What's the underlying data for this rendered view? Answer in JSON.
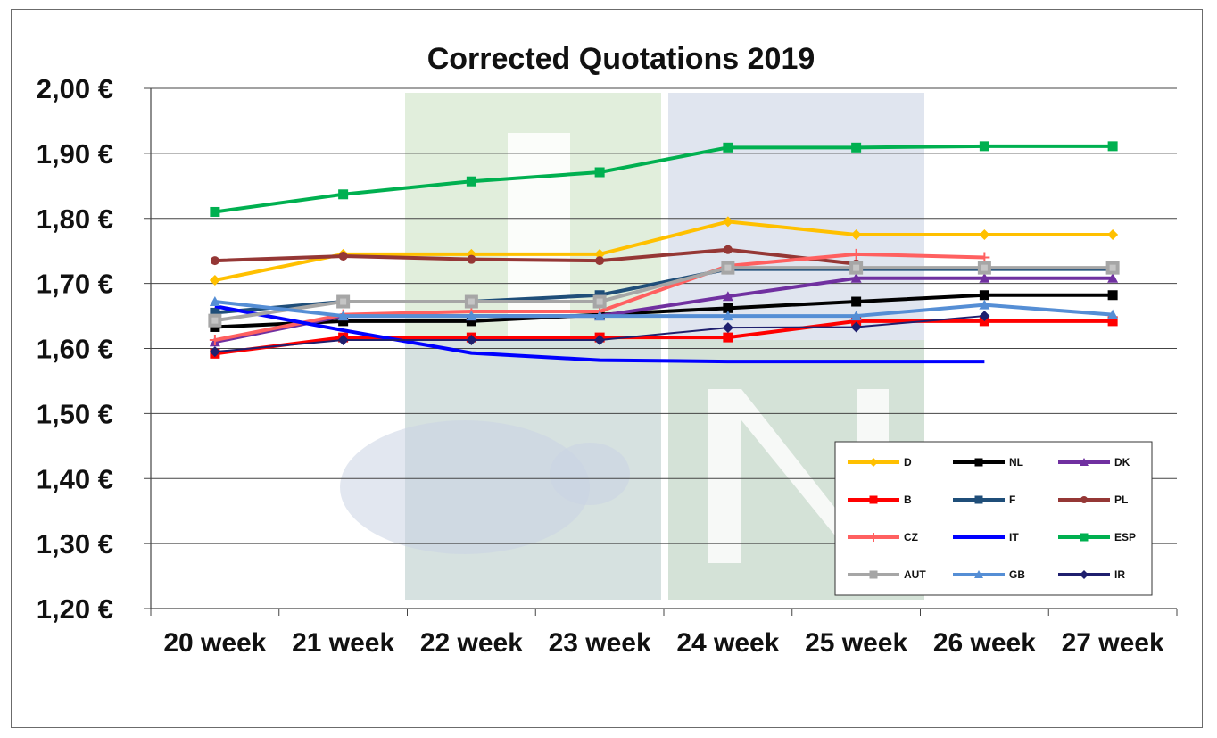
{
  "chart_data": {
    "type": "line",
    "title": "Corrected Quotations 2019",
    "xlabel": "",
    "ylabel": "",
    "categories": [
      "20 week",
      "21 week",
      "22 week",
      "23 week",
      "24 week",
      "25 week",
      "26 week",
      "27 week"
    ],
    "y_tick_labels": [
      "1,20 €",
      "1,30 €",
      "1,40 €",
      "1,50 €",
      "1,60 €",
      "1,70 €",
      "1,80 €",
      "1,90 €",
      "2,00 €"
    ],
    "ylim": [
      1.2,
      2.0
    ],
    "grid": true,
    "legend_position": "bottom-right",
    "series": [
      {
        "name": "D",
        "color": "#FFC000",
        "marker": "diamond",
        "values": [
          1.705,
          1.745,
          1.745,
          1.745,
          1.795,
          1.775,
          1.775,
          1.775
        ]
      },
      {
        "name": "NL",
        "color": "#000000",
        "marker": "square",
        "values": [
          1.633,
          1.642,
          1.642,
          1.652,
          1.662,
          1.672,
          1.682,
          1.682
        ]
      },
      {
        "name": "DK",
        "color": "#7030A0",
        "marker": "triangle",
        "values": [
          1.61,
          1.65,
          1.65,
          1.65,
          1.68,
          1.708,
          1.708,
          1.708
        ]
      },
      {
        "name": "B",
        "color": "#FF0000",
        "marker": "square",
        "values": [
          1.592,
          1.617,
          1.617,
          1.617,
          1.617,
          1.642,
          1.642,
          1.642
        ]
      },
      {
        "name": "F",
        "color": "#1F4E79",
        "marker": "square",
        "values": [
          1.655,
          1.672,
          1.672,
          1.682,
          1.722,
          1.722,
          1.722,
          1.722
        ]
      },
      {
        "name": "PL",
        "color": "#953735",
        "marker": "circle",
        "values": [
          1.735,
          1.742,
          1.737,
          1.735,
          1.752,
          1.73,
          null,
          null
        ]
      },
      {
        "name": "CZ",
        "color": "#FF6060",
        "marker": "plus",
        "values": [
          1.613,
          1.652,
          1.657,
          1.657,
          1.727,
          1.745,
          1.74,
          null
        ]
      },
      {
        "name": "IT",
        "color": "#0000FF",
        "marker": "none",
        "values": [
          1.665,
          1.628,
          1.593,
          1.582,
          1.58,
          1.58,
          1.58,
          null
        ]
      },
      {
        "name": "ESP",
        "color": "#00B050",
        "marker": "square",
        "values": [
          1.81,
          1.837,
          1.857,
          1.871,
          1.909,
          1.909,
          1.911,
          1.911
        ]
      },
      {
        "name": "AUT",
        "color": "#A6A6A6",
        "marker": "square",
        "values": [
          1.643,
          1.672,
          1.672,
          1.672,
          1.724,
          1.724,
          1.724,
          1.724
        ]
      },
      {
        "name": "GB",
        "color": "#558ED5",
        "marker": "triangle",
        "values": [
          1.672,
          1.65,
          1.65,
          1.65,
          1.65,
          1.65,
          1.667,
          1.652
        ]
      },
      {
        "name": "IR",
        "color": "#1F1F6E",
        "marker": "diamond",
        "values": [
          1.595,
          1.613,
          1.613,
          1.613,
          1.632,
          1.633,
          1.65,
          null
        ]
      }
    ]
  },
  "watermark": {
    "logo_colors": {
      "green": "#C8E0C0",
      "blue": "#CBD4E4"
    }
  }
}
